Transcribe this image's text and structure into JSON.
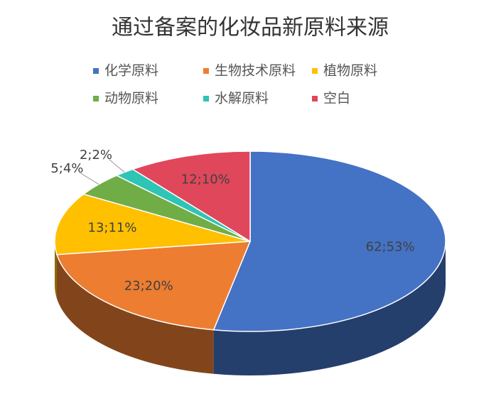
{
  "chart_data": {
    "type": "pie",
    "title": "通过备案的化妆品新原料来源",
    "categories": [
      "化学原料",
      "生物技术原料",
      "植物原料",
      "动物原料",
      "水解原料",
      "空白"
    ],
    "values": [
      62,
      23,
      13,
      5,
      2,
      12
    ],
    "value_labels": [
      "62;53%",
      "23;20%",
      "13;11%",
      "5;4%",
      "2;2%",
      "12;10%"
    ],
    "colors": [
      "#4472c4",
      "#ed7d31",
      "#ffc000",
      "#70ad47",
      "#2ec4b6",
      "#e0475b"
    ]
  }
}
